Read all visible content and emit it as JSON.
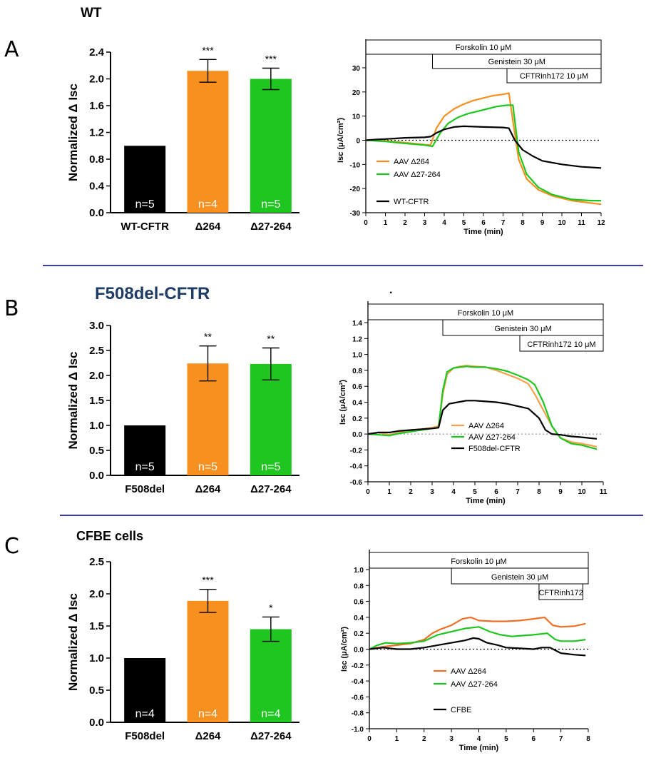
{
  "sections": [
    {
      "letter": "A",
      "title": "WT",
      "bar": {
        "type": "bar",
        "ylabel": "Normalized Δ Isc",
        "ylim": [
          0,
          2.4
        ],
        "yticks": [
          "0.0",
          "0.4",
          "0.8",
          "1.2",
          "1.6",
          "2.0",
          "2.4"
        ],
        "categories": [
          "WT-CFTR",
          "Δ264",
          "Δ27-264"
        ],
        "values": [
          1.0,
          2.12,
          2.0
        ],
        "errors": [
          0,
          0.17,
          0.16
        ],
        "colors": [
          "#000000",
          "#f7901e",
          "#1fc61f"
        ],
        "n_labels": [
          "n=5",
          "n=4",
          "n=5"
        ],
        "stars": [
          "",
          "***",
          "***"
        ]
      },
      "trace": {
        "type": "line",
        "ylabel": "Isc (μA/cm²)",
        "xlabel": "Time (min)",
        "xlim": [
          0,
          12
        ],
        "ylim": [
          -30,
          30
        ],
        "xticks": [
          "0",
          "1",
          "2",
          "3",
          "4",
          "5",
          "6",
          "7",
          "8",
          "9",
          "10",
          "11",
          "12"
        ],
        "yticks": [
          "-30",
          "-20",
          "-10",
          "0",
          "10",
          "20",
          "30"
        ],
        "drugs": [
          "Forskolin 10 μM",
          "Genistein 30 μM",
          "CFTRinh172 10 μM"
        ],
        "series": [
          {
            "name": "AAV Δ264",
            "color": "#f7901e",
            "x": [
              0,
              1,
              2,
              3,
              3.3,
              3.6,
              4,
              4.5,
              5,
              5.5,
              6,
              6.5,
              7,
              7.3,
              7.5,
              7.8,
              8.2,
              8.8,
              9.5,
              10.5,
              11.5,
              12
            ],
            "y": [
              0,
              -0.3,
              -1,
              -1.8,
              -2,
              5,
              10,
              13,
              15,
              16.5,
              17.5,
              18.5,
              19,
              19.5,
              8,
              -8,
              -16,
              -20.5,
              -23,
              -25,
              -26,
              -26.5
            ]
          },
          {
            "name": "AAV Δ27-264",
            "color": "#1fc61f",
            "x": [
              0,
              1,
              2,
              3,
              3.4,
              3.8,
              4.2,
              4.7,
              5.2,
              5.7,
              6.2,
              6.7,
              7.2,
              7.5,
              7.8,
              8.2,
              8.8,
              9.5,
              10.5,
              11.5,
              12
            ],
            "y": [
              0,
              -0.5,
              -1.3,
              -2,
              -2.5,
              3,
              7,
              9.5,
              11,
              12,
              13,
              14,
              14.5,
              14.5,
              -5,
              -14,
              -19.5,
              -22.5,
              -24.5,
              -25,
              -25
            ]
          },
          {
            "name": "WT-CFTR",
            "color": "#000000",
            "x": [
              0,
              0.5,
              1,
              2,
              3,
              3.3,
              3.6,
              4,
              4.5,
              5,
              6,
              7,
              7.3,
              7.6,
              8,
              8.5,
              9,
              10,
              11,
              12
            ],
            "y": [
              0,
              0.3,
              0.5,
              1,
              1.2,
              1.5,
              3,
              4.5,
              5.5,
              5.8,
              5.5,
              5.3,
              5,
              0,
              -4,
              -6.5,
              -8.5,
              -10,
              -11,
              -11.5
            ]
          }
        ],
        "legend": [
          "AAV Δ264",
          "AAV Δ27-264",
          "WT-CFTR"
        ]
      }
    },
    {
      "letter": "B",
      "title": "F508del-CFTR",
      "bar": {
        "type": "bar",
        "ylabel": "Normalized Δ Isc",
        "ylim": [
          0,
          3.0
        ],
        "yticks": [
          "0.0",
          "0.5",
          "1.0",
          "1.5",
          "2.0",
          "2.5",
          "3.0"
        ],
        "categories": [
          "F508del",
          "Δ264",
          "Δ27-264"
        ],
        "values": [
          1.0,
          2.24,
          2.23
        ],
        "errors": [
          0,
          0.35,
          0.32
        ],
        "colors": [
          "#000000",
          "#f7901e",
          "#1fc61f"
        ],
        "n_labels": [
          "n=5",
          "n=5",
          "n=5"
        ],
        "stars": [
          "",
          "**",
          "**"
        ]
      },
      "trace": {
        "type": "line",
        "ylabel": "Isc (μA/cm²)",
        "xlabel": "Time (min)",
        "xlim": [
          0,
          11
        ],
        "ylim": [
          -0.6,
          1.4
        ],
        "xticks": [
          "0",
          "1",
          "2",
          "3",
          "4",
          "5",
          "6",
          "7",
          "8",
          "9",
          "10",
          "11"
        ],
        "yticks": [
          "-0.6",
          "-0.4",
          "-0.2",
          "0.0",
          "0.2",
          "0.4",
          "0.6",
          "0.8",
          "1.0",
          "1.2",
          "1.4"
        ],
        "drugs": [
          "Forskolin 10 μM",
          "Genistein 30 μM",
          "CFTRinh172 10 μM"
        ],
        "series": [
          {
            "name": "AAV Δ264",
            "color": "#f5a14e",
            "x": [
              0,
              0.5,
              1,
              1.5,
              2,
              2.5,
              3,
              3.3,
              3.5,
              3.7,
              4,
              4.3,
              4.6,
              5,
              5.5,
              6,
              6.5,
              7,
              7.5,
              7.8,
              8.2,
              8.6,
              9,
              9.5,
              10,
              10.7
            ],
            "y": [
              0,
              0.02,
              -0.01,
              0.02,
              0.05,
              0.06,
              0.08,
              0.1,
              0.5,
              0.75,
              0.83,
              0.85,
              0.86,
              0.85,
              0.84,
              0.8,
              0.75,
              0.7,
              0.63,
              0.5,
              0.3,
              0.1,
              -0.05,
              -0.1,
              -0.12,
              -0.16
            ]
          },
          {
            "name": "AAV Δ27-264",
            "color": "#1fc61f",
            "x": [
              0,
              0.5,
              1,
              1.5,
              2,
              2.5,
              3,
              3.3,
              3.5,
              3.7,
              4,
              4.3,
              4.6,
              5,
              5.5,
              6,
              6.5,
              7,
              7.5,
              7.8,
              8.2,
              8.6,
              9,
              9.5,
              10,
              10.7
            ],
            "y": [
              0,
              -0.01,
              -0.02,
              0.01,
              0.03,
              0.05,
              0.07,
              0.08,
              0.55,
              0.78,
              0.83,
              0.84,
              0.85,
              0.84,
              0.84,
              0.82,
              0.79,
              0.74,
              0.68,
              0.62,
              0.4,
              0.1,
              -0.05,
              -0.12,
              -0.14,
              -0.19
            ]
          },
          {
            "name": "F508del-CFTR",
            "color": "#000000",
            "x": [
              0,
              0.5,
              1,
              1.5,
              2,
              2.5,
              3,
              3.3,
              3.5,
              3.8,
              4.2,
              4.6,
              5,
              5.5,
              6,
              6.5,
              7,
              7.5,
              8,
              8.3,
              8.6,
              9,
              9.5,
              10,
              10.7
            ],
            "y": [
              0,
              0.02,
              0.02,
              0.04,
              0.05,
              0.06,
              0.07,
              0.08,
              0.3,
              0.38,
              0.4,
              0.42,
              0.42,
              0.41,
              0.4,
              0.38,
              0.35,
              0.32,
              0.2,
              0.05,
              0.0,
              -0.01,
              -0.03,
              -0.04,
              -0.06
            ]
          }
        ],
        "legend": [
          "AAV Δ264",
          "AAV Δ27-264",
          "F508del-CFTR"
        ]
      }
    },
    {
      "letter": "C",
      "title": "CFBE cells",
      "bar": {
        "type": "bar",
        "ylabel": "Normalized Δ Isc",
        "ylim": [
          0,
          2.5
        ],
        "yticks": [
          "0.0",
          "0.5",
          "1.0",
          "1.5",
          "2.0",
          "2.5"
        ],
        "categories": [
          "F508del",
          "Δ264",
          "Δ27-264"
        ],
        "values": [
          1.0,
          1.89,
          1.45
        ],
        "errors": [
          0,
          0.18,
          0.19
        ],
        "colors": [
          "#000000",
          "#f7901e",
          "#1fc61f"
        ],
        "n_labels": [
          "n=4",
          "n=4",
          "n=4"
        ],
        "stars": [
          "",
          "***",
          "*"
        ]
      },
      "trace": {
        "type": "line",
        "ylabel": "Isc (μA/cm²)",
        "xlabel": "Time (min)",
        "xlim": [
          0,
          8
        ],
        "ylim": [
          -1.0,
          1.0
        ],
        "xticks": [
          "0",
          "1",
          "2",
          "3",
          "4",
          "5",
          "6",
          "7",
          "8"
        ],
        "yticks": [
          "-1.0",
          "-0.8",
          "-0.6",
          "-0.4",
          "-0.2",
          "0.0",
          "0.2",
          "0.4",
          "0.6",
          "0.8",
          "1.0"
        ],
        "drugs": [
          "Forskolin 10 μM",
          "Genistein 30 μM",
          "CFTRinh172"
        ],
        "series": [
          {
            "name": "AAV Δ264",
            "color": "#ef6f22",
            "x": [
              0,
              0.5,
              1,
              1.5,
              2,
              2.3,
              2.6,
              3,
              3.4,
              3.7,
              4,
              4.5,
              5,
              5.5,
              6,
              6.4,
              6.7,
              7,
              7.5,
              7.9
            ],
            "y": [
              0,
              0.03,
              0.05,
              0.07,
              0.12,
              0.2,
              0.25,
              0.3,
              0.38,
              0.4,
              0.36,
              0.35,
              0.35,
              0.36,
              0.38,
              0.4,
              0.3,
              0.28,
              0.29,
              0.32
            ]
          },
          {
            "name": "AAV Δ27-264",
            "color": "#1fc61f",
            "x": [
              0,
              0.3,
              0.6,
              1,
              1.5,
              2,
              2.5,
              3,
              3.5,
              4,
              4.4,
              4.8,
              5.2,
              5.6,
              6,
              6.5,
              6.8,
              7,
              7.5,
              7.9
            ],
            "y": [
              0,
              0.05,
              0.08,
              0.07,
              0.08,
              0.1,
              0.18,
              0.22,
              0.26,
              0.28,
              0.22,
              0.18,
              0.16,
              0.17,
              0.18,
              0.2,
              0.12,
              0.1,
              0.1,
              0.12
            ]
          },
          {
            "name": "CFBE",
            "color": "#000000",
            "x": [
              0,
              0.5,
              1,
              1.5,
              2,
              2.5,
              3,
              3.5,
              3.8,
              4,
              4.3,
              4.7,
              5,
              5.5,
              6,
              6.3,
              6.6,
              7,
              7.5,
              7.9
            ],
            "y": [
              0,
              0.02,
              0.0,
              0.0,
              0.02,
              0.05,
              0.08,
              0.11,
              0.14,
              0.13,
              0.08,
              0.05,
              0.02,
              0.01,
              0.0,
              0.02,
              0.02,
              -0.05,
              -0.07,
              -0.08
            ]
          }
        ],
        "legend": [
          "AAV Δ264",
          "AAV Δ27-264",
          "CFBE"
        ]
      }
    }
  ],
  "stray_mark": "."
}
